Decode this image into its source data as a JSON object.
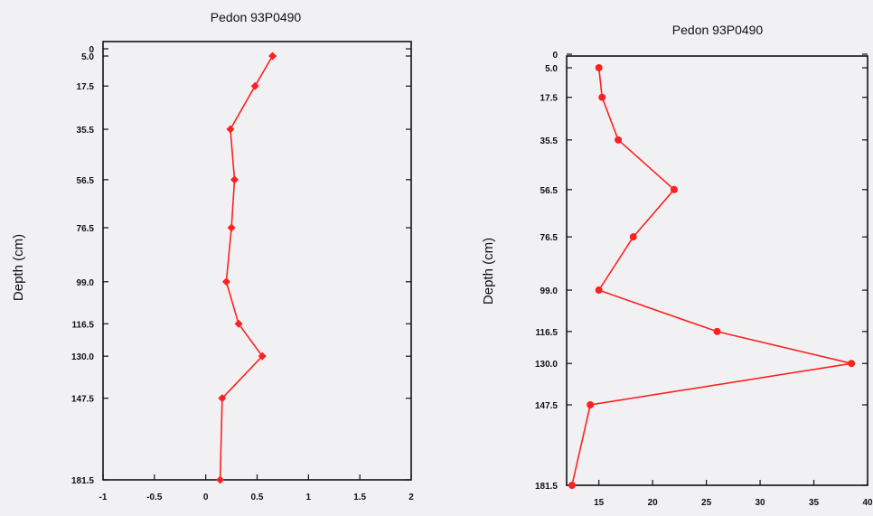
{
  "chart_data": [
    {
      "type": "line",
      "title": "Pedon 93P0490",
      "ylabel": "Depth (cm)",
      "xlabel": "",
      "xlim": [
        -1,
        2
      ],
      "ylim": [
        181.5,
        0
      ],
      "y_inverted": true,
      "xticks": [
        "-1",
        "-0.5",
        "0",
        "0.5",
        "1",
        "1.5",
        "2"
      ],
      "yticks": [
        "0",
        "5.0",
        "17.5",
        "35.5",
        "56.5",
        "76.5",
        "99.0",
        "116.5",
        "130.0",
        "147.5",
        "181.5"
      ],
      "series": [
        {
          "color": "#ff2020",
          "marker": "diamond",
          "points": [
            {
              "x": 0.65,
              "y": 5.0
            },
            {
              "x": 0.48,
              "y": 17.5
            },
            {
              "x": 0.24,
              "y": 35.5
            },
            {
              "x": 0.28,
              "y": 56.5
            },
            {
              "x": 0.25,
              "y": 76.5
            },
            {
              "x": 0.2,
              "y": 99.0
            },
            {
              "x": 0.32,
              "y": 116.5
            },
            {
              "x": 0.55,
              "y": 130.0
            },
            {
              "x": 0.16,
              "y": 147.5
            },
            {
              "x": 0.14,
              "y": 181.5
            }
          ]
        }
      ],
      "grid": false
    },
    {
      "type": "line",
      "title": "Pedon 93P0490",
      "ylabel": "Depth (cm)",
      "xlabel": "",
      "xlim": [
        12,
        40
      ],
      "ylim": [
        181.5,
        0
      ],
      "y_inverted": true,
      "xticks": [
        "15",
        "20",
        "25",
        "30",
        "35",
        "40"
      ],
      "yticks": [
        "0",
        "5.0",
        "17.5",
        "35.5",
        "56.5",
        "76.5",
        "99.0",
        "116.5",
        "130.0",
        "147.5",
        "181.5"
      ],
      "series": [
        {
          "color": "#ff2020",
          "marker": "circle",
          "points": [
            {
              "x": 15.0,
              "y": 5.0
            },
            {
              "x": 15.3,
              "y": 17.5
            },
            {
              "x": 16.8,
              "y": 35.5
            },
            {
              "x": 22.0,
              "y": 56.5
            },
            {
              "x": 18.2,
              "y": 76.5
            },
            {
              "x": 15.0,
              "y": 99.0
            },
            {
              "x": 26.0,
              "y": 116.5
            },
            {
              "x": 38.5,
              "y": 130.0
            },
            {
              "x": 14.2,
              "y": 147.5
            },
            {
              "x": 12.5,
              "y": 181.5
            }
          ]
        }
      ],
      "grid": false
    }
  ]
}
